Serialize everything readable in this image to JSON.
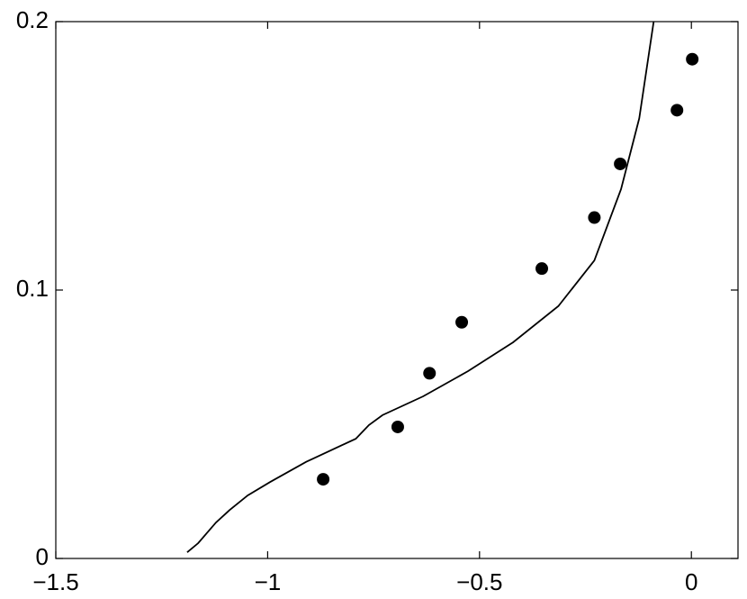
{
  "chart_data": {
    "type": "scatter",
    "series": [
      {
        "type": "line",
        "color": "#000000",
        "x": [
          -1.19,
          -1.164,
          -1.122,
          -1.09,
          -1.047,
          -0.994,
          -0.909,
          -0.792,
          -0.761,
          -0.729,
          -0.633,
          -0.527,
          -0.421,
          -0.314,
          -0.229,
          -0.166,
          -0.123,
          -0.089
        ],
        "values": [
          0.0023,
          0.0057,
          0.0134,
          0.018,
          0.0235,
          0.0285,
          0.036,
          0.0446,
          0.0497,
          0.0534,
          0.0604,
          0.0698,
          0.0805,
          0.094,
          0.111,
          0.1376,
          0.164,
          0.2
        ]
      },
      {
        "type": "scatter",
        "color": "#000000",
        "x": [
          -0.869,
          -0.693,
          -0.618,
          -0.542,
          -0.353,
          -0.229,
          -0.168,
          -0.034,
          0.002
        ],
        "values": [
          0.0295,
          0.049,
          0.069,
          0.088,
          0.108,
          0.127,
          0.147,
          0.167,
          0.186
        ]
      }
    ],
    "xlim": [
      -1.5,
      0.11
    ],
    "ylim": [
      0,
      0.2
    ],
    "xticks": [
      {
        "value": -1.5,
        "label": "−1.5"
      },
      {
        "value": -1,
        "label": "−1"
      },
      {
        "value": -0.5,
        "label": "−0.5"
      },
      0
    ],
    "yticks": [
      0,
      0.1,
      0.2
    ]
  }
}
